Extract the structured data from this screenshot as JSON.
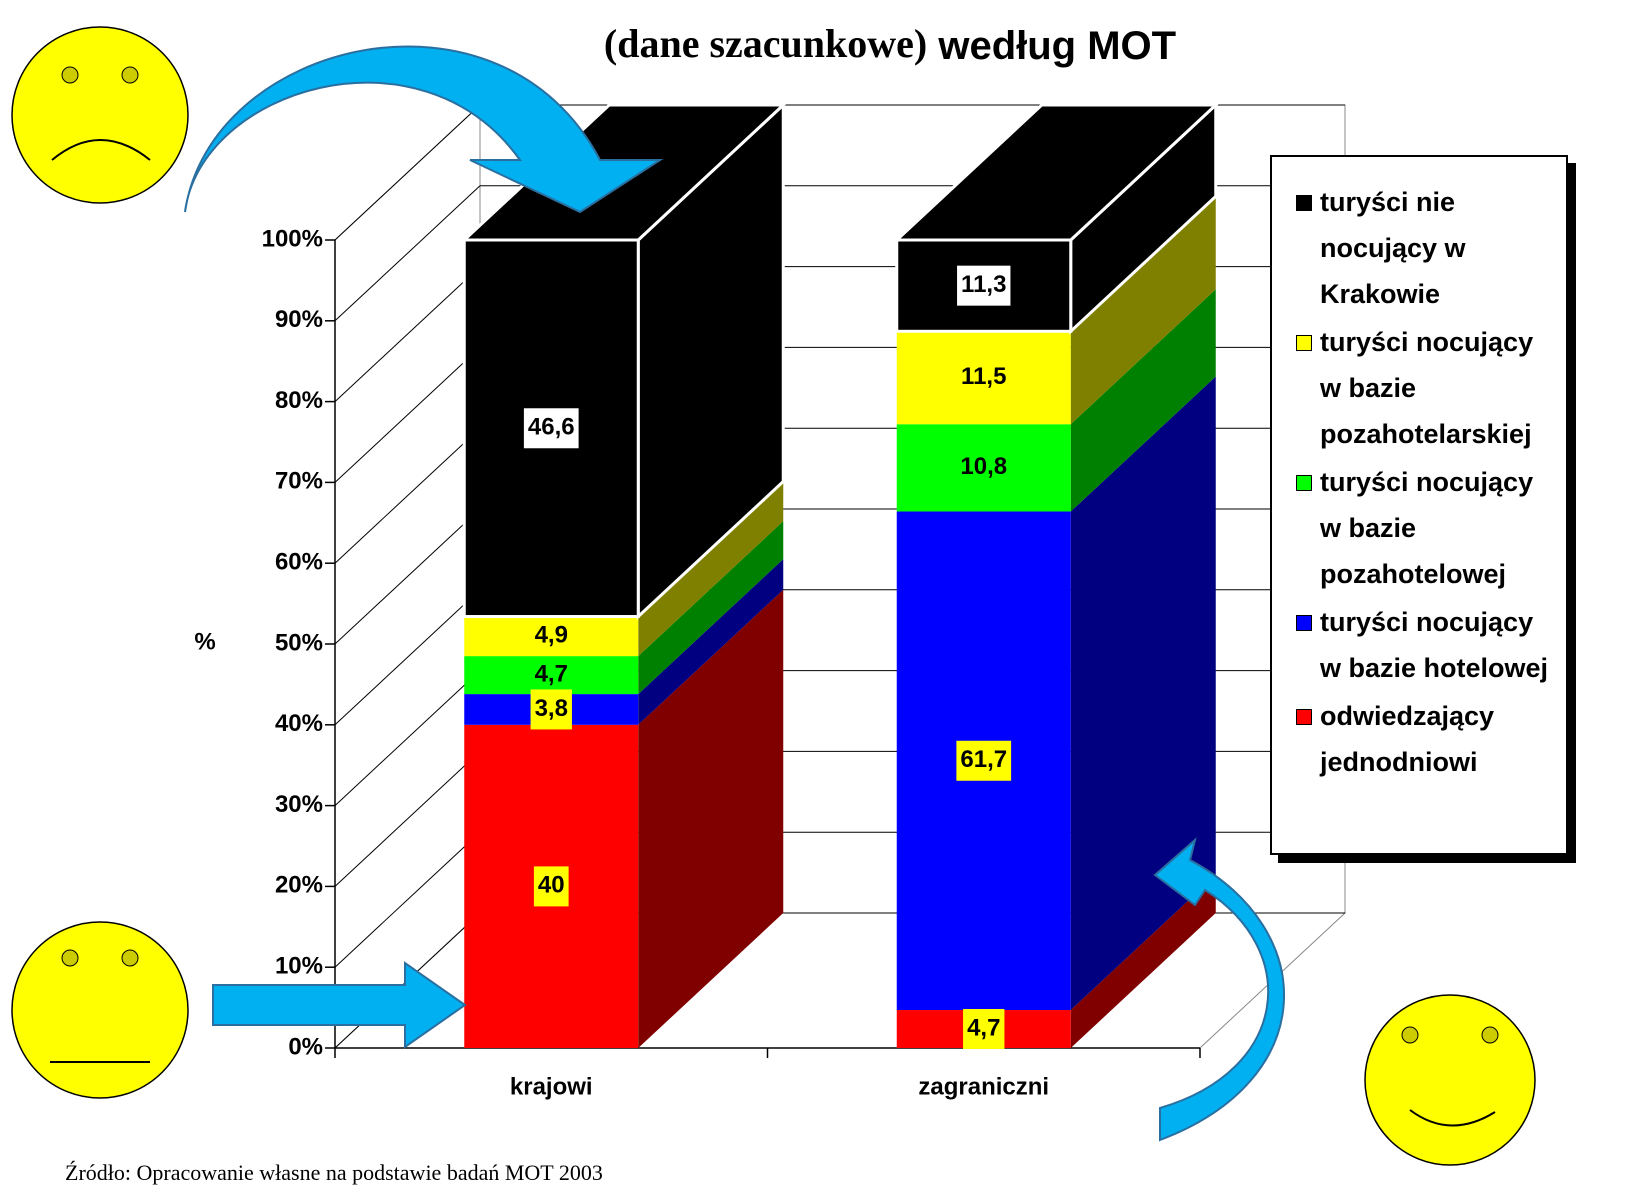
{
  "chart_data": {
    "type": "bar3d_stacked",
    "title": [
      "(dane szacunkowe)",
      "według MOT"
    ],
    "y_label": "%",
    "categories": [
      "krajowi",
      "zagraniczni"
    ],
    "series": [
      {
        "name": "odwiedzający jednodniowi",
        "color": "#ff0000",
        "values": [
          40,
          4.7
        ],
        "value_labels": [
          "40",
          "4,7"
        ]
      },
      {
        "name": "turyści nocujący w bazie hotelowej",
        "color": "#0000ff",
        "values": [
          3.8,
          61.7
        ],
        "value_labels": [
          "3,8",
          "61,7"
        ]
      },
      {
        "name": "turyści nocujący w bazie pozahotelowej",
        "color": "#00ff00",
        "values": [
          4.7,
          10.8
        ],
        "value_labels": [
          "4,7",
          "10,8"
        ]
      },
      {
        "name": "turyści nocujący w bazie pozahotelarskiej",
        "color": "#ffff00",
        "values": [
          4.9,
          11.5
        ],
        "value_labels": [
          "4,9",
          "11,5"
        ]
      },
      {
        "name": "turyści nie nocujący w Krakowie",
        "color": "#000000",
        "values": [
          46.6,
          11.3
        ],
        "value_labels": [
          "46,6",
          "11,3"
        ]
      }
    ],
    "ylim": [
      0,
      100
    ],
    "yticks": [
      {
        "value": 0,
        "label": "0%"
      },
      {
        "value": 10,
        "label": "10%"
      },
      {
        "value": 20,
        "label": "20%"
      },
      {
        "value": 30,
        "label": "30%"
      },
      {
        "value": 40,
        "label": "40%"
      },
      {
        "value": 50,
        "label": "50%"
      },
      {
        "value": 60,
        "label": "60%"
      },
      {
        "value": 70,
        "label": "70%"
      },
      {
        "value": 80,
        "label": "80%"
      },
      {
        "value": 90,
        "label": "90%"
      },
      {
        "value": 100,
        "label": "100%"
      }
    ],
    "grid": true,
    "legend": "right",
    "source": "Źródło: Opracowanie własne na podstawie badań MOT 2003"
  }
}
